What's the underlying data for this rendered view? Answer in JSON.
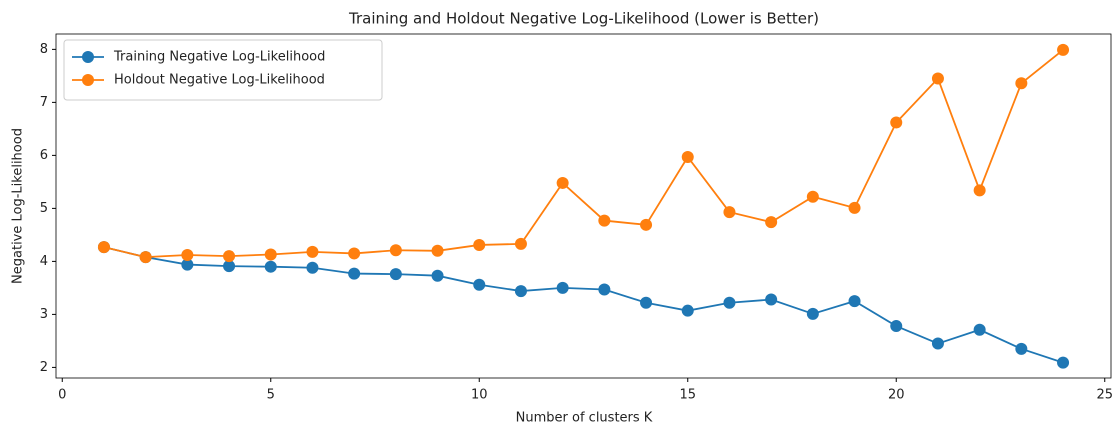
{
  "chart_data": {
    "type": "line",
    "title": "Training and Holdout Negative Log-Likelihood (Lower is Better)",
    "x_label": "Number of clusters K",
    "y_label": "Negative Log-Likelihood",
    "x": [
      1,
      2,
      3,
      4,
      5,
      6,
      7,
      8,
      9,
      10,
      11,
      12,
      13,
      14,
      15,
      16,
      17,
      18,
      19,
      20,
      21,
      22,
      23,
      24
    ],
    "series": [
      {
        "name": "Training Negative Log-Likelihood",
        "color": "#1f77b4",
        "values": [
          4.27,
          4.08,
          3.94,
          3.91,
          3.9,
          3.88,
          3.77,
          3.76,
          3.73,
          3.56,
          3.44,
          3.5,
          3.47,
          3.22,
          3.07,
          3.22,
          3.28,
          3.01,
          3.25,
          2.78,
          2.45,
          2.71,
          2.35,
          2.09
        ]
      },
      {
        "name": "Holdout Negative Log-Likelihood",
        "color": "#ff7f0e",
        "values": [
          4.27,
          4.08,
          4.12,
          4.1,
          4.13,
          4.18,
          4.15,
          4.21,
          4.2,
          4.31,
          4.33,
          5.48,
          4.77,
          4.69,
          5.97,
          4.93,
          4.74,
          5.22,
          5.01,
          6.62,
          7.45,
          5.34,
          7.36,
          7.99
        ]
      }
    ],
    "xlim": [
      -0.15,
      25.15
    ],
    "xticks": [
      0,
      5,
      10,
      15,
      20,
      25
    ],
    "ylim": [
      1.8,
      8.29
    ],
    "yticks": [
      2,
      3,
      4,
      5,
      6,
      7,
      8
    ],
    "grid": false,
    "legend": "upper-left"
  }
}
